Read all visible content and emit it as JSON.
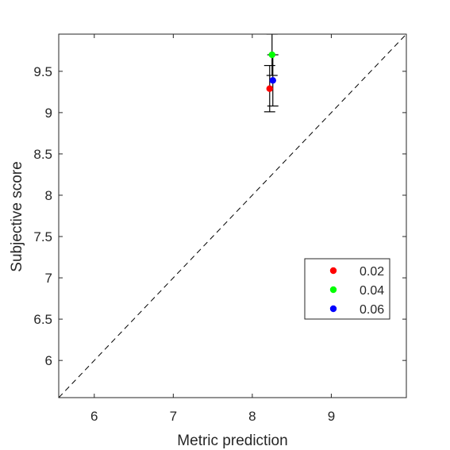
{
  "chart_data": {
    "type": "scatter",
    "title": "",
    "xlabel": "Metric prediction",
    "ylabel": "Subjective score",
    "xlim": [
      5.55,
      9.95
    ],
    "ylim": [
      5.55,
      9.95
    ],
    "xticks": [
      6,
      7,
      8,
      9
    ],
    "yticks": [
      6,
      6.5,
      7,
      7.5,
      8,
      8.5,
      9,
      9.5
    ],
    "grid": false,
    "box": true,
    "reference_line": {
      "style": "dashed",
      "from": [
        5.55,
        5.55
      ],
      "to": [
        9.95,
        9.95
      ]
    },
    "legend": {
      "placement": "lower-right-inside"
    },
    "series": [
      {
        "name": "0.02",
        "color": "#ff0000",
        "points": [
          {
            "x": 8.22,
            "y": 9.29,
            "err_low": 9.01,
            "err_high": 9.57
          }
        ]
      },
      {
        "name": "0.04",
        "color": "#00ff00",
        "points": [
          {
            "x": 8.25,
            "y": 9.7,
            "err_low": 9.45,
            "err_high": 9.95
          }
        ]
      },
      {
        "name": "0.06",
        "color": "#0000ff",
        "points": [
          {
            "x": 8.26,
            "y": 9.39,
            "err_low": 9.08,
            "err_high": 9.7
          }
        ]
      }
    ]
  }
}
